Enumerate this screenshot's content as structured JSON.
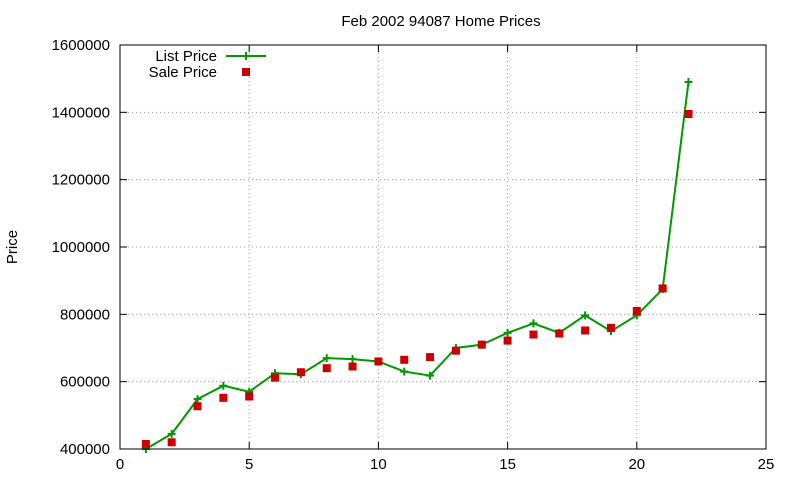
{
  "chart_data": {
    "type": "line",
    "title": "Feb 2002 94087 Home Prices",
    "xlabel": "",
    "ylabel": "Price",
    "xlim": [
      0,
      25
    ],
    "ylim": [
      400000,
      1600000
    ],
    "x_ticks": [
      0,
      5,
      10,
      15,
      20,
      25
    ],
    "y_ticks": [
      400000,
      600000,
      800000,
      1000000,
      1200000,
      1400000,
      1600000
    ],
    "grid": true,
    "legend_position": "top-left",
    "colors": {
      "list": "#009900",
      "sale": "#cc0000",
      "grid": "#a0a0a0",
      "axis": "#000000"
    },
    "series": [
      {
        "name": "List Price",
        "style": "linespoints",
        "x": [
          1,
          2,
          3,
          4,
          5,
          6,
          7,
          8,
          9,
          10,
          11,
          12,
          13,
          14,
          15,
          16,
          17,
          18,
          19,
          20,
          21,
          22
        ],
        "values": [
          400000,
          445000,
          548000,
          588000,
          570000,
          625000,
          622000,
          670000,
          667000,
          660000,
          630000,
          618000,
          700000,
          710000,
          745000,
          773000,
          745000,
          797000,
          750000,
          797000,
          875000,
          1490000
        ]
      },
      {
        "name": "Sale Price",
        "style": "points",
        "x": [
          1,
          2,
          3,
          4,
          5,
          6,
          7,
          8,
          9,
          10,
          11,
          12,
          13,
          14,
          15,
          16,
          17,
          18,
          19,
          20,
          21,
          22
        ],
        "values": [
          415000,
          420000,
          527000,
          552000,
          556000,
          612000,
          628000,
          640000,
          645000,
          660000,
          665000,
          673000,
          692000,
          710000,
          722000,
          740000,
          743000,
          752000,
          760000,
          810000,
          877000,
          1395000
        ]
      }
    ]
  }
}
